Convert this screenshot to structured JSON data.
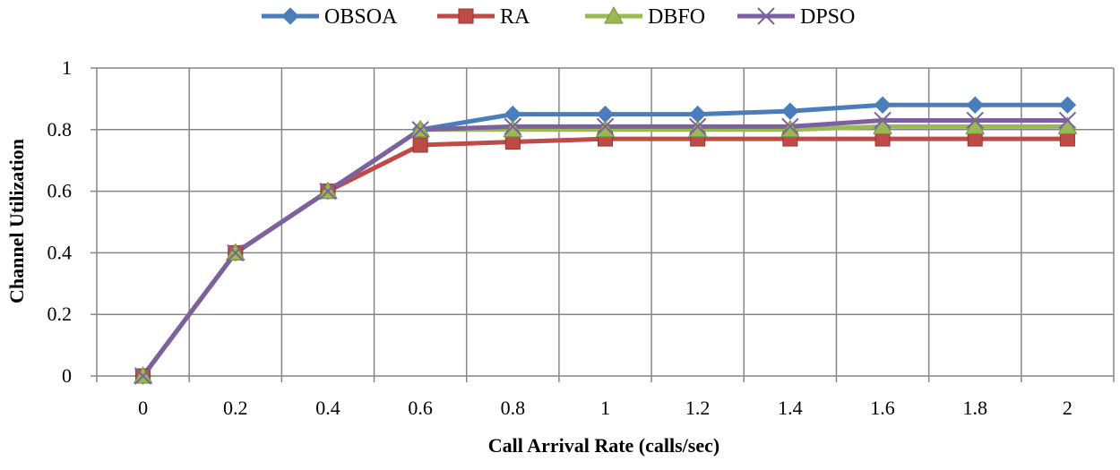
{
  "chart_data": {
    "type": "line",
    "title": "",
    "xlabel": "Call Arrival Rate (calls/sec)",
    "ylabel": "Channel Utilization",
    "x": [
      0,
      0.2,
      0.4,
      0.6,
      0.8,
      1,
      1.2,
      1.4,
      1.6,
      1.8,
      2
    ],
    "x_tick_labels": [
      "0",
      "0.2",
      "0.4",
      "0.6",
      "0.8",
      "1",
      "1.2",
      "1.4",
      "1.6",
      "1.8",
      "2"
    ],
    "y_tick_labels": [
      "0",
      "0.2",
      "0.4",
      "0.6",
      "0.8",
      "1"
    ],
    "ylim": [
      0,
      1
    ],
    "grid": true,
    "legend_position": "top",
    "series": [
      {
        "name": "OBSOA",
        "color": "#4a7ebb",
        "marker": "diamond",
        "values": [
          0,
          0.4,
          0.6,
          0.8,
          0.85,
          0.85,
          0.85,
          0.86,
          0.88,
          0.88,
          0.88
        ]
      },
      {
        "name": "RA",
        "color": "#be4b48",
        "marker": "square",
        "values": [
          0,
          0.4,
          0.6,
          0.75,
          0.76,
          0.77,
          0.77,
          0.77,
          0.77,
          0.77,
          0.77
        ]
      },
      {
        "name": "DBFO",
        "color": "#98b954",
        "marker": "triangle",
        "values": [
          0,
          0.4,
          0.6,
          0.8,
          0.8,
          0.8,
          0.8,
          0.8,
          0.81,
          0.81,
          0.81
        ]
      },
      {
        "name": "DPSO",
        "color": "#7d60a0",
        "marker": "x",
        "values": [
          0,
          0.4,
          0.6,
          0.8,
          0.81,
          0.81,
          0.81,
          0.81,
          0.83,
          0.83,
          0.83
        ]
      }
    ]
  }
}
